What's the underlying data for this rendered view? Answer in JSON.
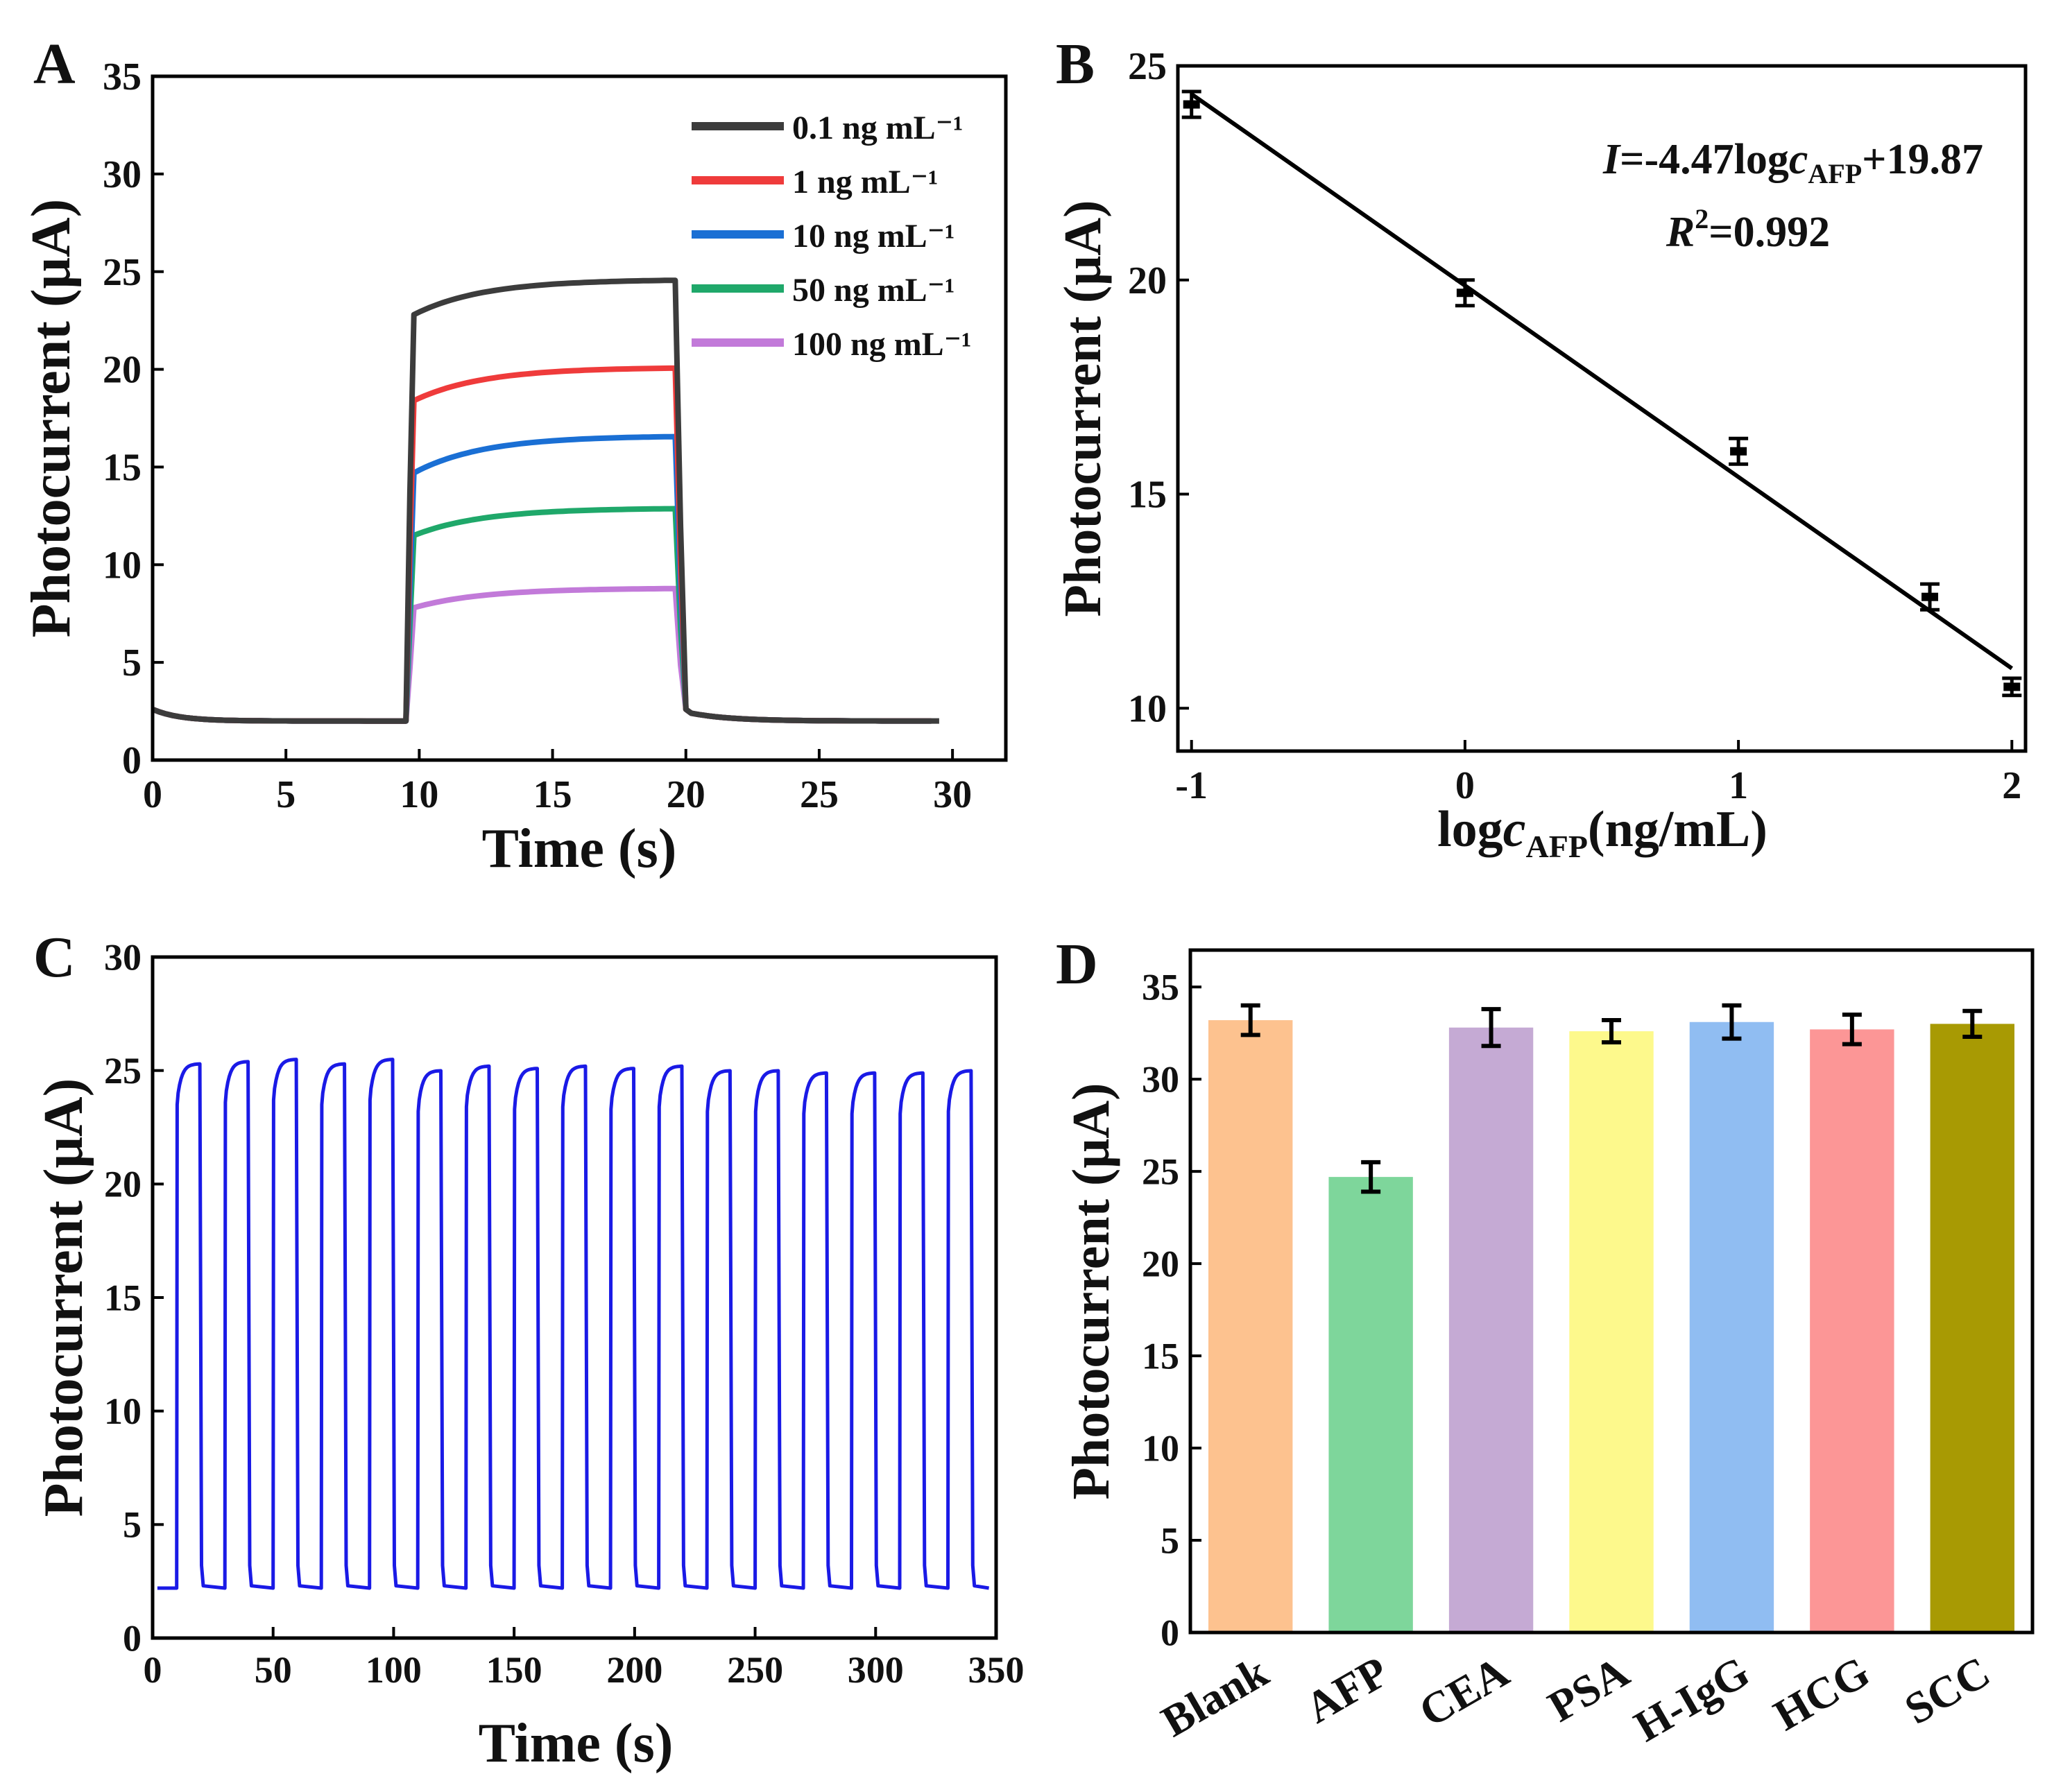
{
  "chart_data": [
    {
      "panel": "A",
      "type": "line",
      "xlabel": "Time (s)",
      "ylabel": "Photocurrent (μA)",
      "xlim": [
        0,
        32
      ],
      "ylim": [
        0,
        35
      ],
      "xticks": [
        0,
        5,
        10,
        15,
        20,
        25,
        30
      ],
      "yticks": [
        0,
        5,
        10,
        15,
        20,
        25,
        30,
        35
      ],
      "legend_position": "top-right",
      "light_on": 9.5,
      "light_off": 19.6,
      "series": [
        {
          "name": "0.1 ng mL⁻¹",
          "color": "#3c3c3c",
          "dark": 2.0,
          "jump": 22.8,
          "plateau_end": 24.6,
          "end_x": 29.6
        },
        {
          "name": "1 ng mL⁻¹",
          "color": "#ef3b3b",
          "dark": 2.0,
          "jump": 18.4,
          "plateau_end": 20.1,
          "end_x": 29.3
        },
        {
          "name": "10 ng mL⁻¹",
          "color": "#1a6fd4",
          "dark": 2.0,
          "jump": 14.7,
          "plateau_end": 16.6,
          "end_x": 29.3
        },
        {
          "name": "50 ng mL⁻¹",
          "color": "#1fa86a",
          "dark": 2.0,
          "jump": 11.5,
          "plateau_end": 12.9,
          "end_x": 29.3
        },
        {
          "name": "100 ng mL⁻¹",
          "color": "#c27ad9",
          "dark": 2.0,
          "jump": 7.8,
          "plateau_end": 8.8,
          "end_x": 29.3
        }
      ]
    },
    {
      "panel": "B",
      "type": "scatter",
      "xlabel_parts": [
        "log",
        "c",
        "AFP",
        "(ng/mL)"
      ],
      "ylabel": "Photocurrent (μA)",
      "xlim": [
        -1.05,
        2.05
      ],
      "ylim": [
        9,
        25
      ],
      "xticks": [
        -1,
        0,
        1,
        2
      ],
      "yticks": [
        10,
        15,
        20,
        25
      ],
      "x": [
        -1,
        0,
        1,
        1.7,
        2
      ],
      "y": [
        24.1,
        19.7,
        16.0,
        12.6,
        10.5
      ],
      "yerr": [
        0.3,
        0.3,
        0.3,
        0.3,
        0.2
      ],
      "fit": {
        "slope": -4.47,
        "intercept": 19.87,
        "x_range": [
          -1,
          2
        ]
      },
      "equation_parts": [
        "I",
        "=-4.47log",
        "c",
        "AFP",
        "+19.87"
      ],
      "r2_parts": [
        "R",
        "2",
        "=0.992"
      ]
    },
    {
      "panel": "C",
      "type": "line",
      "xlabel": "Time (s)",
      "ylabel": "Photocurrent (μA)",
      "xlim": [
        0,
        350
      ],
      "ylim": [
        0,
        30
      ],
      "xticks": [
        0,
        50,
        100,
        150,
        200,
        250,
        300,
        350
      ],
      "yticks": [
        0,
        5,
        10,
        15,
        20,
        25,
        30
      ],
      "color": "#1a1ae6",
      "period": 20,
      "on_duration": 10,
      "first_on": 10,
      "cycles": 17,
      "dark": 2.2,
      "peaks": [
        25.3,
        25.4,
        25.5,
        25.3,
        25.5,
        25.0,
        25.2,
        25.1,
        25.2,
        25.1,
        25.2,
        25.0,
        25.0,
        24.9,
        24.9,
        24.9,
        25.0
      ]
    },
    {
      "panel": "D",
      "type": "bar",
      "ylabel": "Photocurrent (μA)",
      "categories": [
        "Blank",
        "AFP",
        "CEA",
        "PSA",
        "H-IgG",
        "HCG",
        "SCC"
      ],
      "values": [
        33.2,
        24.7,
        32.8,
        32.6,
        33.1,
        32.7,
        33.0
      ],
      "errors": [
        0.8,
        0.8,
        1.0,
        0.6,
        0.9,
        0.8,
        0.7
      ],
      "colors": [
        "#fdc28f",
        "#7ed69b",
        "#c5aad4",
        "#fdf98c",
        "#90bdf2",
        "#fc9696",
        "#a89a03"
      ],
      "ylim": [
        0,
        37
      ],
      "yticks": [
        0,
        5,
        10,
        15,
        20,
        25,
        30,
        35
      ]
    }
  ],
  "panel_labels": [
    "A",
    "B",
    "C",
    "D"
  ]
}
